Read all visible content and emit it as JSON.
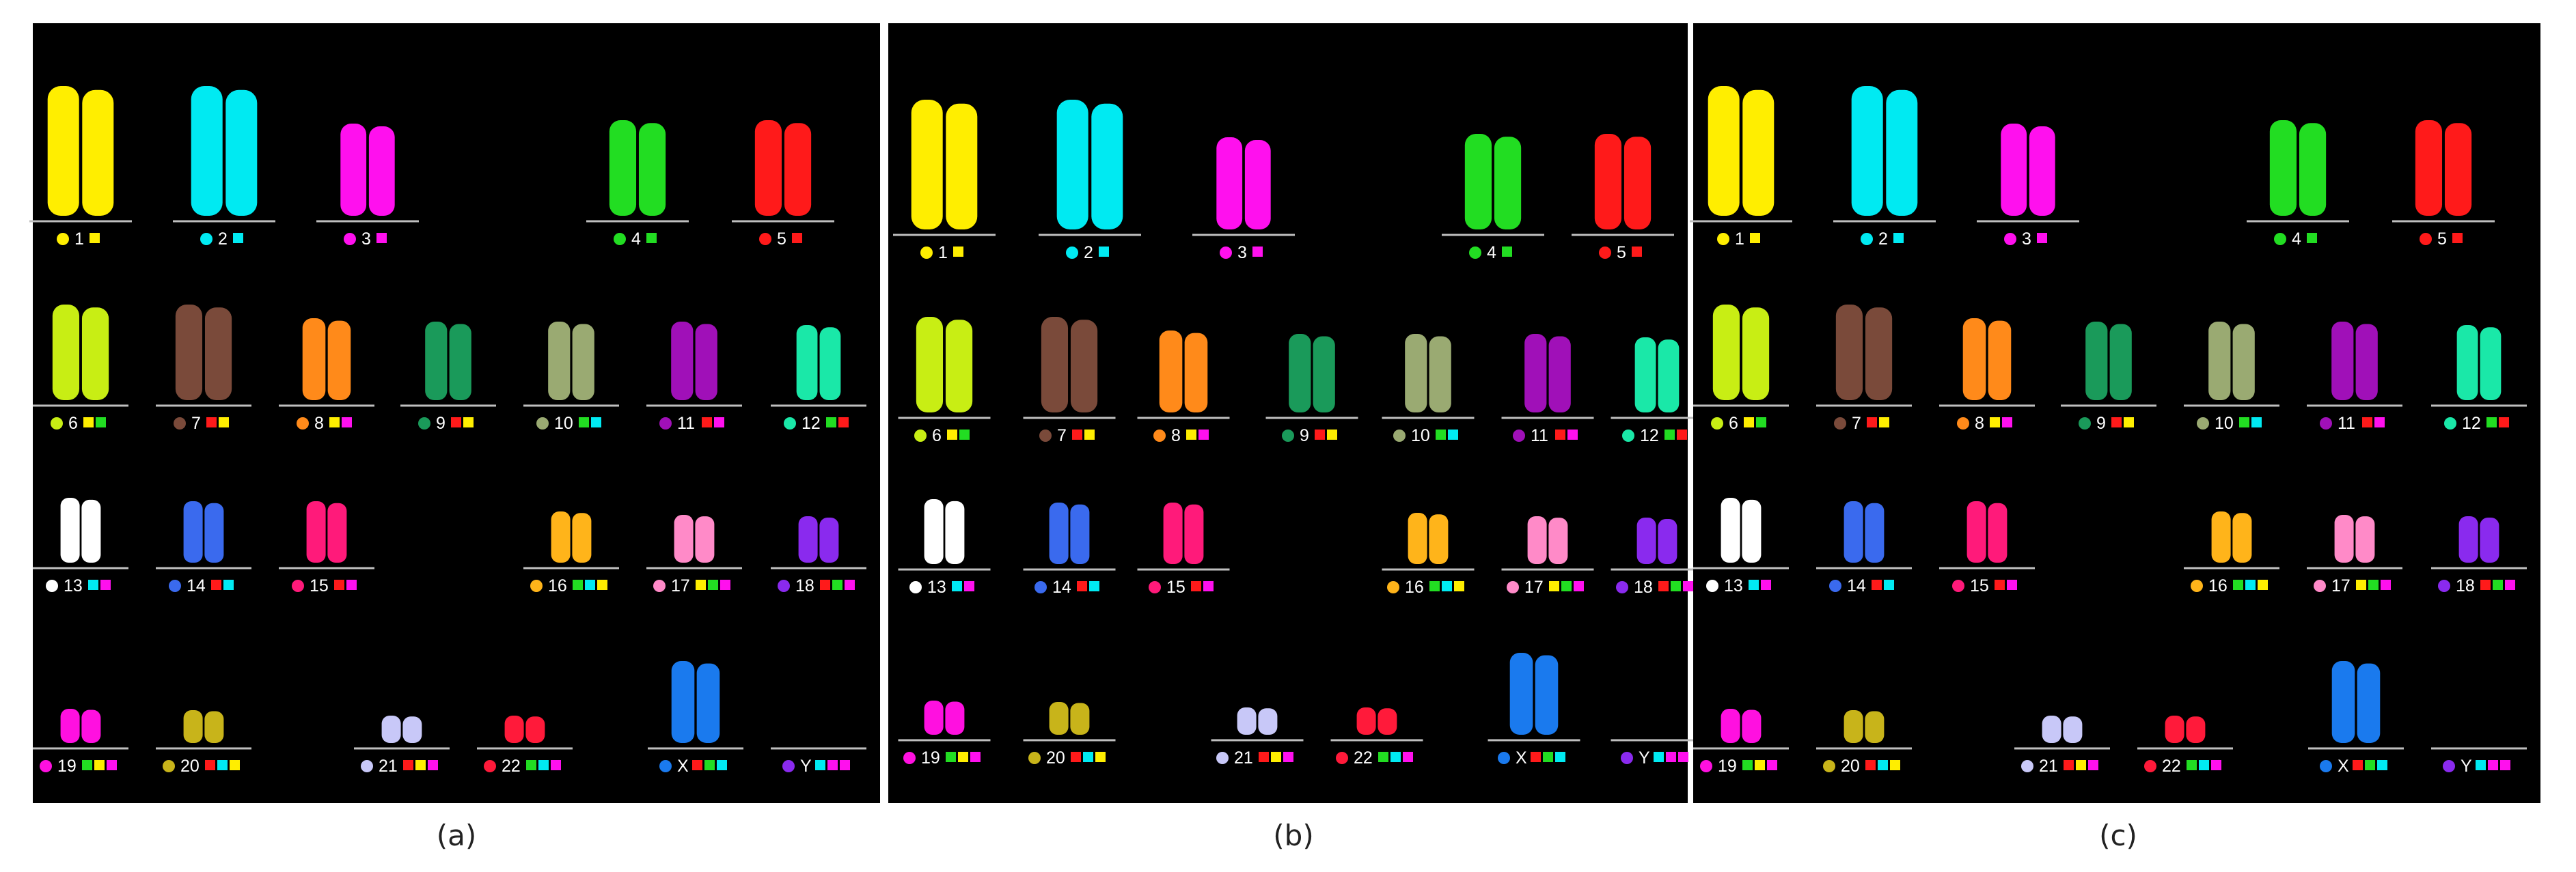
{
  "figure": {
    "panels": [
      {
        "id": "a",
        "caption": "(a)"
      },
      {
        "id": "b",
        "caption": "(b)"
      },
      {
        "id": "c",
        "caption": "(c)"
      }
    ],
    "chromosomes": [
      {
        "label": "1",
        "color": "#ffee00",
        "markers": [
          "#ffee00"
        ]
      },
      {
        "label": "2",
        "color": "#00eaf2",
        "markers": [
          "#00eaf2"
        ]
      },
      {
        "label": "3",
        "color": "#ff10ee",
        "markers": [
          "#ff10ee"
        ]
      },
      {
        "label": "4",
        "color": "#22dd22",
        "markers": [
          "#22dd22"
        ]
      },
      {
        "label": "5",
        "color": "#ff1a1a",
        "markers": [
          "#ff1a1a"
        ]
      },
      {
        "label": "6",
        "color": "#c8ee14",
        "markers": [
          "#ffee00",
          "#22dd22"
        ]
      },
      {
        "label": "7",
        "color": "#7a4a3a",
        "markers": [
          "#ff1a1a",
          "#ffee00"
        ]
      },
      {
        "label": "8",
        "color": "#ff8a1a",
        "markers": [
          "#ffee00",
          "#ff10ee"
        ]
      },
      {
        "label": "9",
        "color": "#1a9a5a",
        "markers": [
          "#ff1a1a",
          "#ffee00"
        ]
      },
      {
        "label": "10",
        "color": "#9aaa72",
        "markers": [
          "#22dd22",
          "#00eaf2"
        ]
      },
      {
        "label": "11",
        "color": "#a010b8",
        "markers": [
          "#ff1a1a",
          "#ff10ee"
        ]
      },
      {
        "label": "12",
        "color": "#1ae8a8",
        "markers": [
          "#22dd22",
          "#ff1a1a"
        ]
      },
      {
        "label": "13",
        "color": "#ffffff",
        "markers": [
          "#00eaf2",
          "#ff10ee"
        ]
      },
      {
        "label": "14",
        "color": "#3a6aee",
        "markers": [
          "#ff1a1a",
          "#00eaf2"
        ]
      },
      {
        "label": "15",
        "color": "#ff1a7a",
        "markers": [
          "#ff1a1a",
          "#ff10ee"
        ]
      },
      {
        "label": "16",
        "color": "#ffb41a",
        "markers": [
          "#22dd22",
          "#00eaf2",
          "#ffee00"
        ]
      },
      {
        "label": "17",
        "color": "#ff8ac8",
        "markers": [
          "#ffee00",
          "#22dd22",
          "#ff10ee"
        ]
      },
      {
        "label": "18",
        "color": "#8a2aee",
        "markers": [
          "#ff1a1a",
          "#22dd22",
          "#ff10ee"
        ]
      },
      {
        "label": "19",
        "color": "#ff10e0",
        "markers": [
          "#22dd22",
          "#ffee00",
          "#ff10ee"
        ]
      },
      {
        "label": "20",
        "color": "#c8b41a",
        "markers": [
          "#ff1a1a",
          "#00eaf2",
          "#ffee00"
        ]
      },
      {
        "label": "21",
        "color": "#c8c8f8",
        "markers": [
          "#ff1a1a",
          "#ffee00",
          "#ff10ee"
        ]
      },
      {
        "label": "22",
        "color": "#ff1a3a",
        "markers": [
          "#22dd22",
          "#00eaf2",
          "#ff10ee"
        ]
      },
      {
        "label": "X",
        "color": "#1a7aee",
        "markers": [
          "#ff1a1a",
          "#22dd22",
          "#00eaf2"
        ]
      },
      {
        "label": "Y",
        "color": "#8a2aee",
        "markers": [
          "#00eaf2",
          "#ff10ee",
          "#ff10ee"
        ]
      }
    ]
  }
}
